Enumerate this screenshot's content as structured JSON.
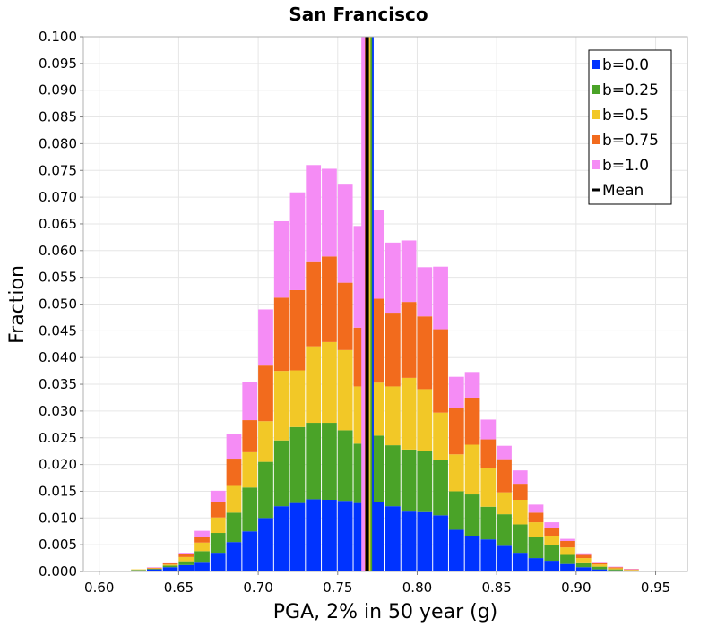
{
  "chart_data": {
    "type": "bar",
    "stacked": true,
    "title": "San Francisco",
    "xlabel": "PGA, 2% in 50 year (g)",
    "ylabel": "Fraction",
    "xlim": [
      0.59,
      0.97
    ],
    "ylim": [
      0.0,
      0.1
    ],
    "bin_width": 0.01,
    "x_ticks": [
      "0.60",
      "0.65",
      "0.70",
      "0.75",
      "0.80",
      "0.85",
      "0.90",
      "0.95"
    ],
    "y_ticks": [
      "0.000",
      "0.005",
      "0.010",
      "0.015",
      "0.020",
      "0.025",
      "0.030",
      "0.035",
      "0.040",
      "0.045",
      "0.050",
      "0.055",
      "0.060",
      "0.065",
      "0.070",
      "0.075",
      "0.080",
      "0.085",
      "0.090",
      "0.095",
      "0.100"
    ],
    "grid": true,
    "legend_position": "top-right",
    "bin_centers": [
      0.615,
      0.625,
      0.635,
      0.645,
      0.655,
      0.665,
      0.675,
      0.685,
      0.695,
      0.705,
      0.715,
      0.725,
      0.735,
      0.745,
      0.755,
      0.765,
      0.775,
      0.785,
      0.795,
      0.805,
      0.815,
      0.825,
      0.835,
      0.845,
      0.855,
      0.865,
      0.875,
      0.885,
      0.895,
      0.905,
      0.915,
      0.925,
      0.935,
      0.945,
      0.955
    ],
    "series": [
      {
        "name": "b=0.0",
        "color": "#0033ff",
        "values": [
          0.0001,
          0.0002,
          0.0004,
          0.0008,
          0.0012,
          0.0018,
          0.0035,
          0.0055,
          0.0075,
          0.01,
          0.0122,
          0.0128,
          0.0135,
          0.0134,
          0.0132,
          0.0128,
          0.013,
          0.0122,
          0.0112,
          0.0111,
          0.0105,
          0.0078,
          0.0067,
          0.006,
          0.0048,
          0.0035,
          0.0025,
          0.002,
          0.0014,
          0.0008,
          0.0004,
          0.0002,
          0.0001,
          0.0001,
          0.0001
        ]
      },
      {
        "name": "b=0.25",
        "color": "#4aa328",
        "values": [
          0.0,
          0.0001,
          0.0001,
          0.0003,
          0.0007,
          0.002,
          0.0037,
          0.0055,
          0.0082,
          0.0105,
          0.0123,
          0.0142,
          0.0143,
          0.0144,
          0.0132,
          0.0111,
          0.0124,
          0.0114,
          0.0116,
          0.0115,
          0.0104,
          0.0072,
          0.0077,
          0.0061,
          0.0059,
          0.0053,
          0.004,
          0.0029,
          0.0017,
          0.0009,
          0.0005,
          0.0002,
          0.0001,
          0.0,
          0.0
        ]
      },
      {
        "name": "b=0.5",
        "color": "#f2c827",
        "values": [
          0.0,
          0.0001,
          0.0001,
          0.0002,
          0.0008,
          0.0016,
          0.0029,
          0.005,
          0.0066,
          0.0076,
          0.013,
          0.0106,
          0.0143,
          0.0151,
          0.015,
          0.0107,
          0.0099,
          0.011,
          0.0134,
          0.0115,
          0.0088,
          0.0069,
          0.0093,
          0.0073,
          0.0041,
          0.0046,
          0.0027,
          0.0018,
          0.0014,
          0.0008,
          0.0004,
          0.0002,
          0.0001,
          0.0,
          0.0
        ]
      },
      {
        "name": "b=0.75",
        "color": "#f26b1d",
        "values": [
          0.0,
          0.0,
          0.0001,
          0.0002,
          0.0005,
          0.0011,
          0.0028,
          0.0051,
          0.006,
          0.0104,
          0.0137,
          0.015,
          0.0159,
          0.016,
          0.0126,
          0.011,
          0.0157,
          0.0138,
          0.0142,
          0.0136,
          0.0156,
          0.0087,
          0.0088,
          0.0053,
          0.0062,
          0.003,
          0.0018,
          0.0014,
          0.0012,
          0.0006,
          0.0004,
          0.0002,
          0.0001,
          0.0,
          0.0
        ]
      },
      {
        "name": "b=1.0",
        "color": "#f58cf5",
        "values": [
          0.0,
          0.0,
          0.0001,
          0.0002,
          0.0003,
          0.0011,
          0.0022,
          0.0046,
          0.0071,
          0.0105,
          0.0143,
          0.0183,
          0.018,
          0.0164,
          0.0185,
          0.019,
          0.0165,
          0.0131,
          0.0115,
          0.0092,
          0.0117,
          0.0058,
          0.0048,
          0.0037,
          0.0025,
          0.0025,
          0.0015,
          0.0011,
          0.0004,
          0.0003,
          0.0001,
          0.0001,
          0.0001,
          0.0,
          0.0
        ]
      }
    ],
    "mean_lines": [
      {
        "name": "b=0.0",
        "color": "#0033ff",
        "x": 0.7715
      },
      {
        "name": "b=0.25",
        "color": "#4aa328",
        "x": 0.7705
      },
      {
        "name": "b=0.5",
        "color": "#f2c827",
        "x": 0.7695
      },
      {
        "name": "b=0.75",
        "color": "#f26b1d",
        "x": 0.7675
      },
      {
        "name": "b=1.0",
        "color": "#f58cf5",
        "x": 0.766
      }
    ],
    "overall_mean": {
      "name": "Mean",
      "color": "#000000",
      "x": 0.7685
    },
    "legend": [
      {
        "label": "b=0.0",
        "color": "#0033ff",
        "kind": "square"
      },
      {
        "label": "b=0.25",
        "color": "#4aa328",
        "kind": "square"
      },
      {
        "label": "b=0.5",
        "color": "#f2c827",
        "kind": "square"
      },
      {
        "label": "b=0.75",
        "color": "#f26b1d",
        "kind": "square"
      },
      {
        "label": "b=1.0",
        "color": "#f58cf5",
        "kind": "square"
      },
      {
        "label": "Mean",
        "color": "#000000",
        "kind": "line"
      }
    ]
  }
}
